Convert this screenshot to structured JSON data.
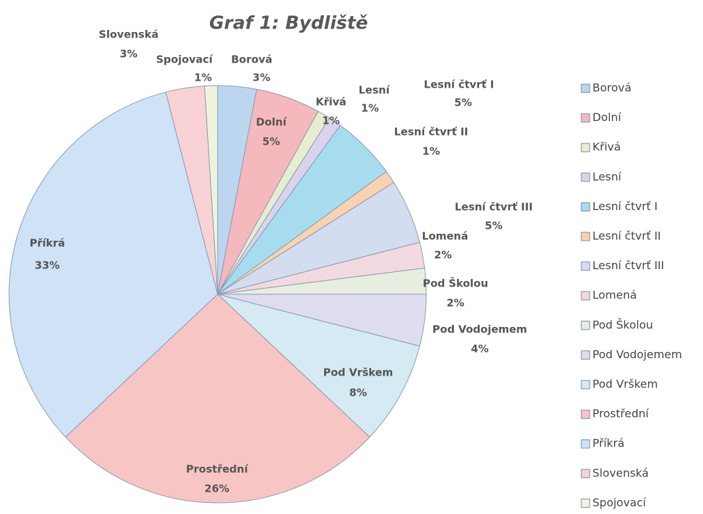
{
  "chart_data": {
    "type": "pie",
    "title": "Graf 1: Bydliště",
    "categories": [
      "Borová",
      "Dolní",
      "Křivá",
      "Lesní",
      "Lesní čtvrť I",
      "Lesní čtvrť II",
      "Lesní čtvrť III",
      "Lomená",
      "Pod Školou",
      "Pod Vodojemem",
      "Pod Vrškem",
      "Prostřední",
      "Příkrá",
      "Slovenská",
      "Spojovací"
    ],
    "values": [
      3,
      5,
      1,
      1,
      5,
      1,
      5,
      2,
      2,
      4,
      8,
      26,
      33,
      3,
      1
    ],
    "value_labels": [
      "3%",
      "5%",
      "1%",
      "1%",
      "5%",
      "1%",
      "5%",
      "2%",
      "2%",
      "4%",
      "8%",
      "26%",
      "33%",
      "3%",
      "1%"
    ],
    "colors": [
      "#bcd6f0",
      "#f5b8bd",
      "#e6eed2",
      "#d9d4ec",
      "#a7dcef",
      "#f9d2b0",
      "#d4dcef",
      "#f2d9e0",
      "#e7eee0",
      "#e0dcef",
      "#d5eaf3",
      "#f8c5c5",
      "#cfe2f6",
      "#f9d2d6",
      "#eef4dc"
    ],
    "legend": "right"
  }
}
